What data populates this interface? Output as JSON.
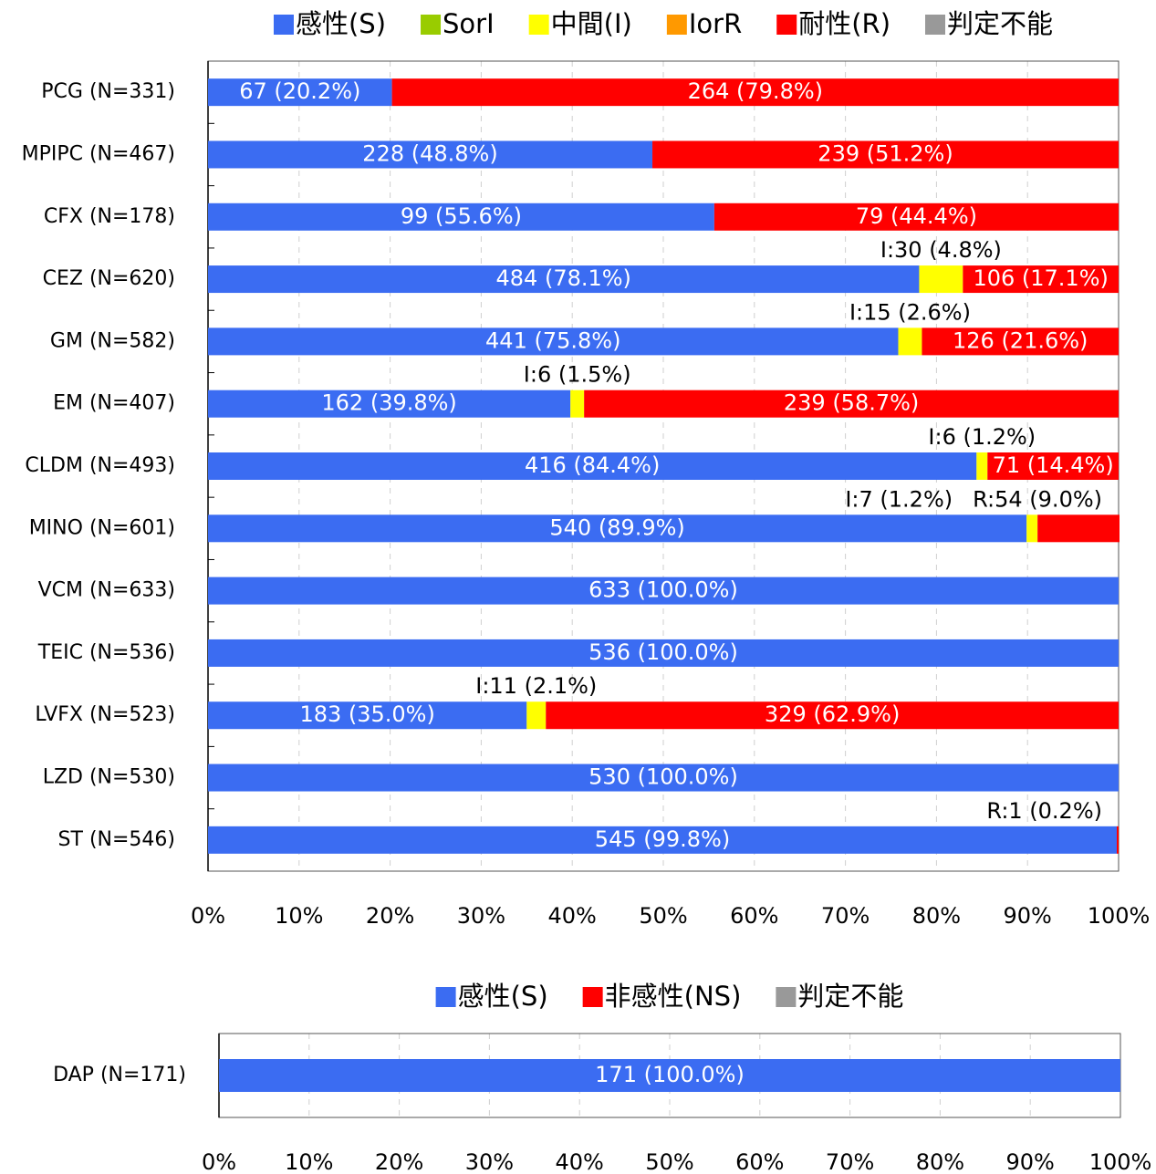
{
  "chart_data": [
    {
      "type": "stacked-bar-horizontal",
      "categories": [
        "PCG (N=331)",
        "MPIPC (N=467)",
        "CFX (N=178)",
        "CEZ (N=620)",
        "GM (N=582)",
        "EM (N=407)",
        "CLDM (N=493)",
        "MINO (N=601)",
        "VCM (N=633)",
        "TEIC (N=536)",
        "LVFX (N=523)",
        "LZD (N=530)",
        "ST (N=546)"
      ],
      "series": [
        {
          "name": "感性(S)",
          "color": "#3b6cf2",
          "values": [
            20.2,
            48.8,
            55.6,
            78.1,
            75.8,
            39.8,
            84.4,
            89.9,
            100.0,
            100.0,
            35.0,
            100.0,
            99.8
          ],
          "value_labels": [
            "67 (20.2%)",
            "228 (48.8%)",
            "99 (55.6%)",
            "484 (78.1%)",
            "441 (75.8%)",
            "162 (39.8%)",
            "416 (84.4%)",
            "540 (89.9%)",
            "633 (100.0%)",
            "536 (100.0%)",
            "183 (35.0%)",
            "530 (100.0%)",
            "545 (99.8%)"
          ]
        },
        {
          "name": "SorI",
          "color": "#99cc00",
          "values": [
            0,
            0,
            0,
            0,
            0,
            0,
            0,
            0,
            0,
            0,
            0,
            0,
            0
          ]
        },
        {
          "name": "中間(I)",
          "color": "#ffff00",
          "values": [
            0,
            0,
            0,
            4.8,
            2.6,
            1.5,
            1.2,
            1.2,
            0,
            0,
            2.1,
            0,
            0
          ],
          "value_labels": [
            null,
            null,
            null,
            "I:30 (4.8%)",
            "I:15 (2.6%)",
            "I:6 (1.5%)",
            "I:6 (1.2%)",
            "I:7 (1.2%)",
            null,
            null,
            "I:11 (2.1%)",
            null,
            null
          ]
        },
        {
          "name": "IorR",
          "color": "#ff9900",
          "values": [
            0,
            0,
            0,
            0,
            0,
            0,
            0,
            0,
            0,
            0,
            0,
            0,
            0
          ]
        },
        {
          "name": "耐性(R)",
          "color": "#ff0000",
          "values": [
            79.8,
            51.2,
            44.4,
            17.1,
            21.6,
            58.7,
            14.4,
            9.0,
            0,
            0,
            62.9,
            0,
            0.2
          ],
          "value_labels": [
            "264 (79.8%)",
            "239 (51.2%)",
            "79 (44.4%)",
            "106 (17.1%)",
            "126 (21.6%)",
            "239 (58.7%)",
            "71 (14.4%)",
            "R:54 (9.0%)",
            null,
            null,
            "329 (62.9%)",
            null,
            "R:1 (0.2%)"
          ]
        },
        {
          "name": "判定不能",
          "color": "#999999",
          "values": [
            0,
            0,
            0,
            0,
            0,
            0,
            0,
            0,
            0,
            0,
            0,
            0,
            0
          ]
        }
      ],
      "xlim": [
        0,
        100
      ],
      "xticks": [
        {
          "value": 0,
          "label": "0%"
        },
        {
          "value": 10,
          "label": "10%"
        },
        {
          "value": 20,
          "label": "20%"
        },
        {
          "value": 30,
          "label": "30%"
        },
        {
          "value": 40,
          "label": "40%"
        },
        {
          "value": 50,
          "label": "50%"
        },
        {
          "value": 60,
          "label": "60%"
        },
        {
          "value": 70,
          "label": "70%"
        },
        {
          "value": 80,
          "label": "80%"
        },
        {
          "value": 90,
          "label": "90%"
        },
        {
          "value": 100,
          "label": "100%"
        }
      ],
      "grid": true,
      "legend": "top"
    },
    {
      "type": "stacked-bar-horizontal",
      "categories": [
        "DAP (N=171)"
      ],
      "series": [
        {
          "name": "感性(S)",
          "color": "#3b6cf2",
          "values": [
            100.0
          ],
          "value_labels": [
            "171 (100.0%)"
          ]
        },
        {
          "name": "非感性(NS)",
          "color": "#ff0000",
          "values": [
            0
          ]
        },
        {
          "name": "判定不能",
          "color": "#999999",
          "values": [
            0
          ]
        }
      ],
      "xlim": [
        0,
        100
      ],
      "xticks": [
        {
          "value": 0,
          "label": "0%"
        },
        {
          "value": 10,
          "label": "10%"
        },
        {
          "value": 20,
          "label": "20%"
        },
        {
          "value": 30,
          "label": "30%"
        },
        {
          "value": 40,
          "label": "40%"
        },
        {
          "value": 50,
          "label": "50%"
        },
        {
          "value": 60,
          "label": "60%"
        },
        {
          "value": 70,
          "label": "70%"
        },
        {
          "value": 80,
          "label": "80%"
        },
        {
          "value": 90,
          "label": "90%"
        },
        {
          "value": 100,
          "label": "100%"
        }
      ],
      "grid": true,
      "legend": "top"
    }
  ]
}
